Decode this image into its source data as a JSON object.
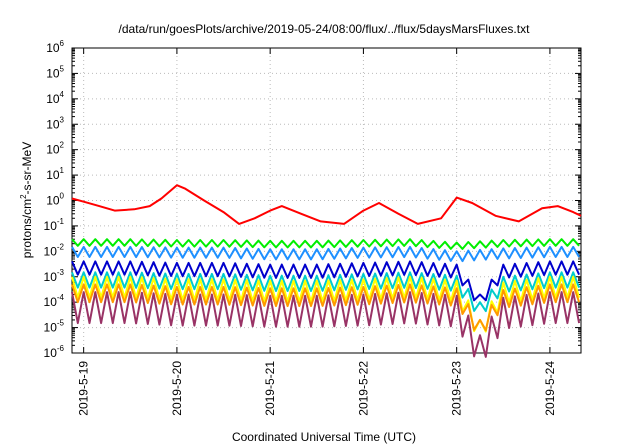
{
  "chart_data": {
    "type": "line",
    "title": "/data/run/goesPlots/archive/2019-05-24/08:00/flux/../flux/5daysMarsFluxes.txt",
    "xlabel": "Coordinated Universal Time (UTC)",
    "ylabel": "protons/cm²-s-sr-MeV",
    "ylabel_parts": {
      "before": "protons/cm",
      "sup": "2",
      "after": "-s-sr-MeV"
    },
    "log_y": true,
    "grid": true,
    "x_unit": "day",
    "xlim": [
      "2019-05-18T21:00",
      "2019-05-24T08:00"
    ],
    "ylim": [
      1e-06,
      1000000.0
    ],
    "x_ticks": [
      {
        "label": "2019-5-19",
        "value": "2019-05-19T00:00"
      },
      {
        "label": "2019-5-20",
        "value": "2019-05-20T00:00"
      },
      {
        "label": "2019-5-21",
        "value": "2019-05-21T00:00"
      },
      {
        "label": "2019-5-22",
        "value": "2019-05-22T00:00"
      },
      {
        "label": "2019-5-23",
        "value": "2019-05-23T00:00"
      },
      {
        "label": "2019-5-24",
        "value": "2019-05-24T00:00"
      }
    ],
    "y_ticks": [
      {
        "base": "10",
        "exp": "-6",
        "value": 1e-06
      },
      {
        "base": "10",
        "exp": "-5",
        "value": 1e-05
      },
      {
        "base": "10",
        "exp": "-4",
        "value": 0.0001
      },
      {
        "base": "10",
        "exp": "-3",
        "value": 0.001
      },
      {
        "base": "10",
        "exp": "-2",
        "value": 0.01
      },
      {
        "base": "10",
        "exp": "-1",
        "value": 0.1
      },
      {
        "base": "10",
        "exp": "0",
        "value": 1
      },
      {
        "base": "10",
        "exp": "1",
        "value": 10
      },
      {
        "base": "10",
        "exp": "2",
        "value": 100
      },
      {
        "base": "10",
        "exp": "3",
        "value": 1000
      },
      {
        "base": "10",
        "exp": "4",
        "value": 10000
      },
      {
        "base": "10",
        "exp": "5",
        "value": 100000
      },
      {
        "base": "10",
        "exp": "6",
        "value": 1000000
      }
    ],
    "series": [
      {
        "color": "#ff0000",
        "x": [
          "2019-05-18T21:00",
          "2019-05-19T00:00",
          "2019-05-19T04:00",
          "2019-05-19T08:00",
          "2019-05-19T13:00",
          "2019-05-19T17:00",
          "2019-05-19T20:00",
          "2019-05-20T00:00",
          "2019-05-20T02:00",
          "2019-05-20T07:00",
          "2019-05-20T12:00",
          "2019-05-20T16:00",
          "2019-05-20T20:00",
          "2019-05-21T00:00",
          "2019-05-21T03:00",
          "2019-05-21T08:00",
          "2019-05-21T13:00",
          "2019-05-21T19:00",
          "2019-05-22T00:00",
          "2019-05-22T04:00",
          "2019-05-22T09:00",
          "2019-05-22T14:00",
          "2019-05-22T20:00",
          "2019-05-23T00:00",
          "2019-05-23T04:00",
          "2019-05-23T10:00",
          "2019-05-23T16:00",
          "2019-05-23T22:00",
          "2019-05-24T02:00",
          "2019-05-24T06:00",
          "2019-05-24T08:00"
        ],
        "values": [
          1.2,
          0.9,
          0.6,
          0.4,
          0.45,
          0.6,
          1.2,
          4.0,
          3.0,
          1.0,
          0.35,
          0.12,
          0.2,
          0.4,
          0.6,
          0.3,
          0.15,
          0.12,
          0.4,
          0.8,
          0.3,
          0.12,
          0.2,
          1.3,
          0.8,
          0.25,
          0.15,
          0.5,
          0.6,
          0.35,
          0.25
        ]
      },
      {
        "color": "#00ee00",
        "x": [
          "2019-05-18T21:00",
          "2019-05-19T12:00",
          "2019-05-20T00:00",
          "2019-05-20T12:00",
          "2019-05-21T00:00",
          "2019-05-21T12:00",
          "2019-05-22T00:00",
          "2019-05-22T12:00",
          "2019-05-23T00:00",
          "2019-05-23T12:00",
          "2019-05-24T00:00",
          "2019-05-24T08:00"
        ],
        "values": [
          0.03,
          0.03,
          0.028,
          0.028,
          0.026,
          0.026,
          0.028,
          0.03,
          0.022,
          0.028,
          0.03,
          0.03
        ],
        "sawtooth": {
          "period_hours": 3,
          "dip_ratio": 0.55
        }
      },
      {
        "color": "#1e90ff",
        "x": [
          "2019-05-18T21:00",
          "2019-05-19T12:00",
          "2019-05-20T00:00",
          "2019-05-20T12:00",
          "2019-05-21T00:00",
          "2019-05-21T12:00",
          "2019-05-22T00:00",
          "2019-05-22T12:00",
          "2019-05-23T00:00",
          "2019-05-23T12:00",
          "2019-05-24T00:00",
          "2019-05-24T08:00"
        ],
        "values": [
          0.015,
          0.015,
          0.014,
          0.014,
          0.012,
          0.012,
          0.014,
          0.015,
          0.01,
          0.013,
          0.015,
          0.015
        ],
        "sawtooth": {
          "period_hours": 3,
          "dip_ratio": 0.4
        }
      },
      {
        "color": "#0000cc",
        "x": [
          "2019-05-18T21:00",
          "2019-05-19T12:00",
          "2019-05-20T00:00",
          "2019-05-20T12:00",
          "2019-05-21T00:00",
          "2019-05-21T12:00",
          "2019-05-22T00:00",
          "2019-05-22T12:00",
          "2019-05-23T00:00",
          "2019-05-23T06:00",
          "2019-05-23T12:00",
          "2019-05-24T00:00",
          "2019-05-24T08:00"
        ],
        "values": [
          0.004,
          0.004,
          0.0035,
          0.0035,
          0.003,
          0.003,
          0.0035,
          0.004,
          0.003,
          0.0002,
          0.003,
          0.004,
          0.004
        ],
        "sawtooth": {
          "period_hours": 3,
          "dip_ratio": 0.3
        }
      },
      {
        "color": "#00cccc",
        "x": [
          "2019-05-18T21:00",
          "2019-05-19T12:00",
          "2019-05-20T00:00",
          "2019-05-20T12:00",
          "2019-05-21T00:00",
          "2019-05-21T12:00",
          "2019-05-22T00:00",
          "2019-05-22T12:00",
          "2019-05-23T00:00",
          "2019-05-23T06:00",
          "2019-05-23T12:00",
          "2019-05-24T00:00",
          "2019-05-24T08:00"
        ],
        "values": [
          0.0015,
          0.0015,
          0.0013,
          0.0013,
          0.0011,
          0.0011,
          0.0013,
          0.0015,
          0.0011,
          0.0001,
          0.001,
          0.0015,
          0.0015
        ],
        "sawtooth": {
          "period_hours": 3,
          "dip_ratio": 0.25
        }
      },
      {
        "color": "#ffff00",
        "x": [
          "2019-05-18T21:00",
          "2019-05-19T12:00",
          "2019-05-20T00:00",
          "2019-05-20T12:00",
          "2019-05-21T00:00",
          "2019-05-21T12:00",
          "2019-05-22T00:00",
          "2019-05-22T12:00",
          "2019-05-23T00:00",
          "2019-05-23T06:00",
          "2019-05-23T12:00",
          "2019-05-24T00:00",
          "2019-05-24T08:00"
        ],
        "values": [
          0.001,
          0.001,
          0.0008,
          0.0008,
          0.0007,
          0.0007,
          0.0008,
          0.001,
          0.0007,
          2e-05,
          0.0006,
          0.001,
          0.001
        ],
        "sawtooth": {
          "period_hours": 3,
          "dip_ratio": 0.15
        }
      },
      {
        "color": "#ff9900",
        "x": [
          "2019-05-18T21:00",
          "2019-05-19T12:00",
          "2019-05-20T00:00",
          "2019-05-20T12:00",
          "2019-05-21T00:00",
          "2019-05-21T12:00",
          "2019-05-22T00:00",
          "2019-05-22T12:00",
          "2019-05-23T00:00",
          "2019-05-23T06:00",
          "2019-05-23T12:00",
          "2019-05-24T00:00",
          "2019-05-24T08:00"
        ],
        "values": [
          0.0005,
          0.0005,
          0.0004,
          0.0004,
          0.00035,
          0.00035,
          0.0004,
          0.0005,
          0.00035,
          2e-05,
          0.0003,
          0.0005,
          0.0005
        ],
        "sawtooth": {
          "period_hours": 3,
          "dip_ratio": 0.2
        }
      },
      {
        "color": "#993366",
        "x": [
          "2019-05-18T21:00",
          "2019-05-19T12:00",
          "2019-05-20T00:00",
          "2019-05-20T12:00",
          "2019-05-21T00:00",
          "2019-05-21T12:00",
          "2019-05-22T00:00",
          "2019-05-22T12:00",
          "2019-05-23T00:00",
          "2019-05-23T06:00",
          "2019-05-23T12:00",
          "2019-05-24T00:00",
          "2019-05-24T08:00"
        ],
        "values": [
          0.00025,
          0.00025,
          0.0002,
          0.0002,
          0.00018,
          0.00018,
          0.0002,
          0.00025,
          0.00018,
          5e-06,
          0.00015,
          0.00025,
          0.00025
        ],
        "sawtooth": {
          "period_hours": 3,
          "dip_ratio": 0.06
        }
      }
    ]
  }
}
